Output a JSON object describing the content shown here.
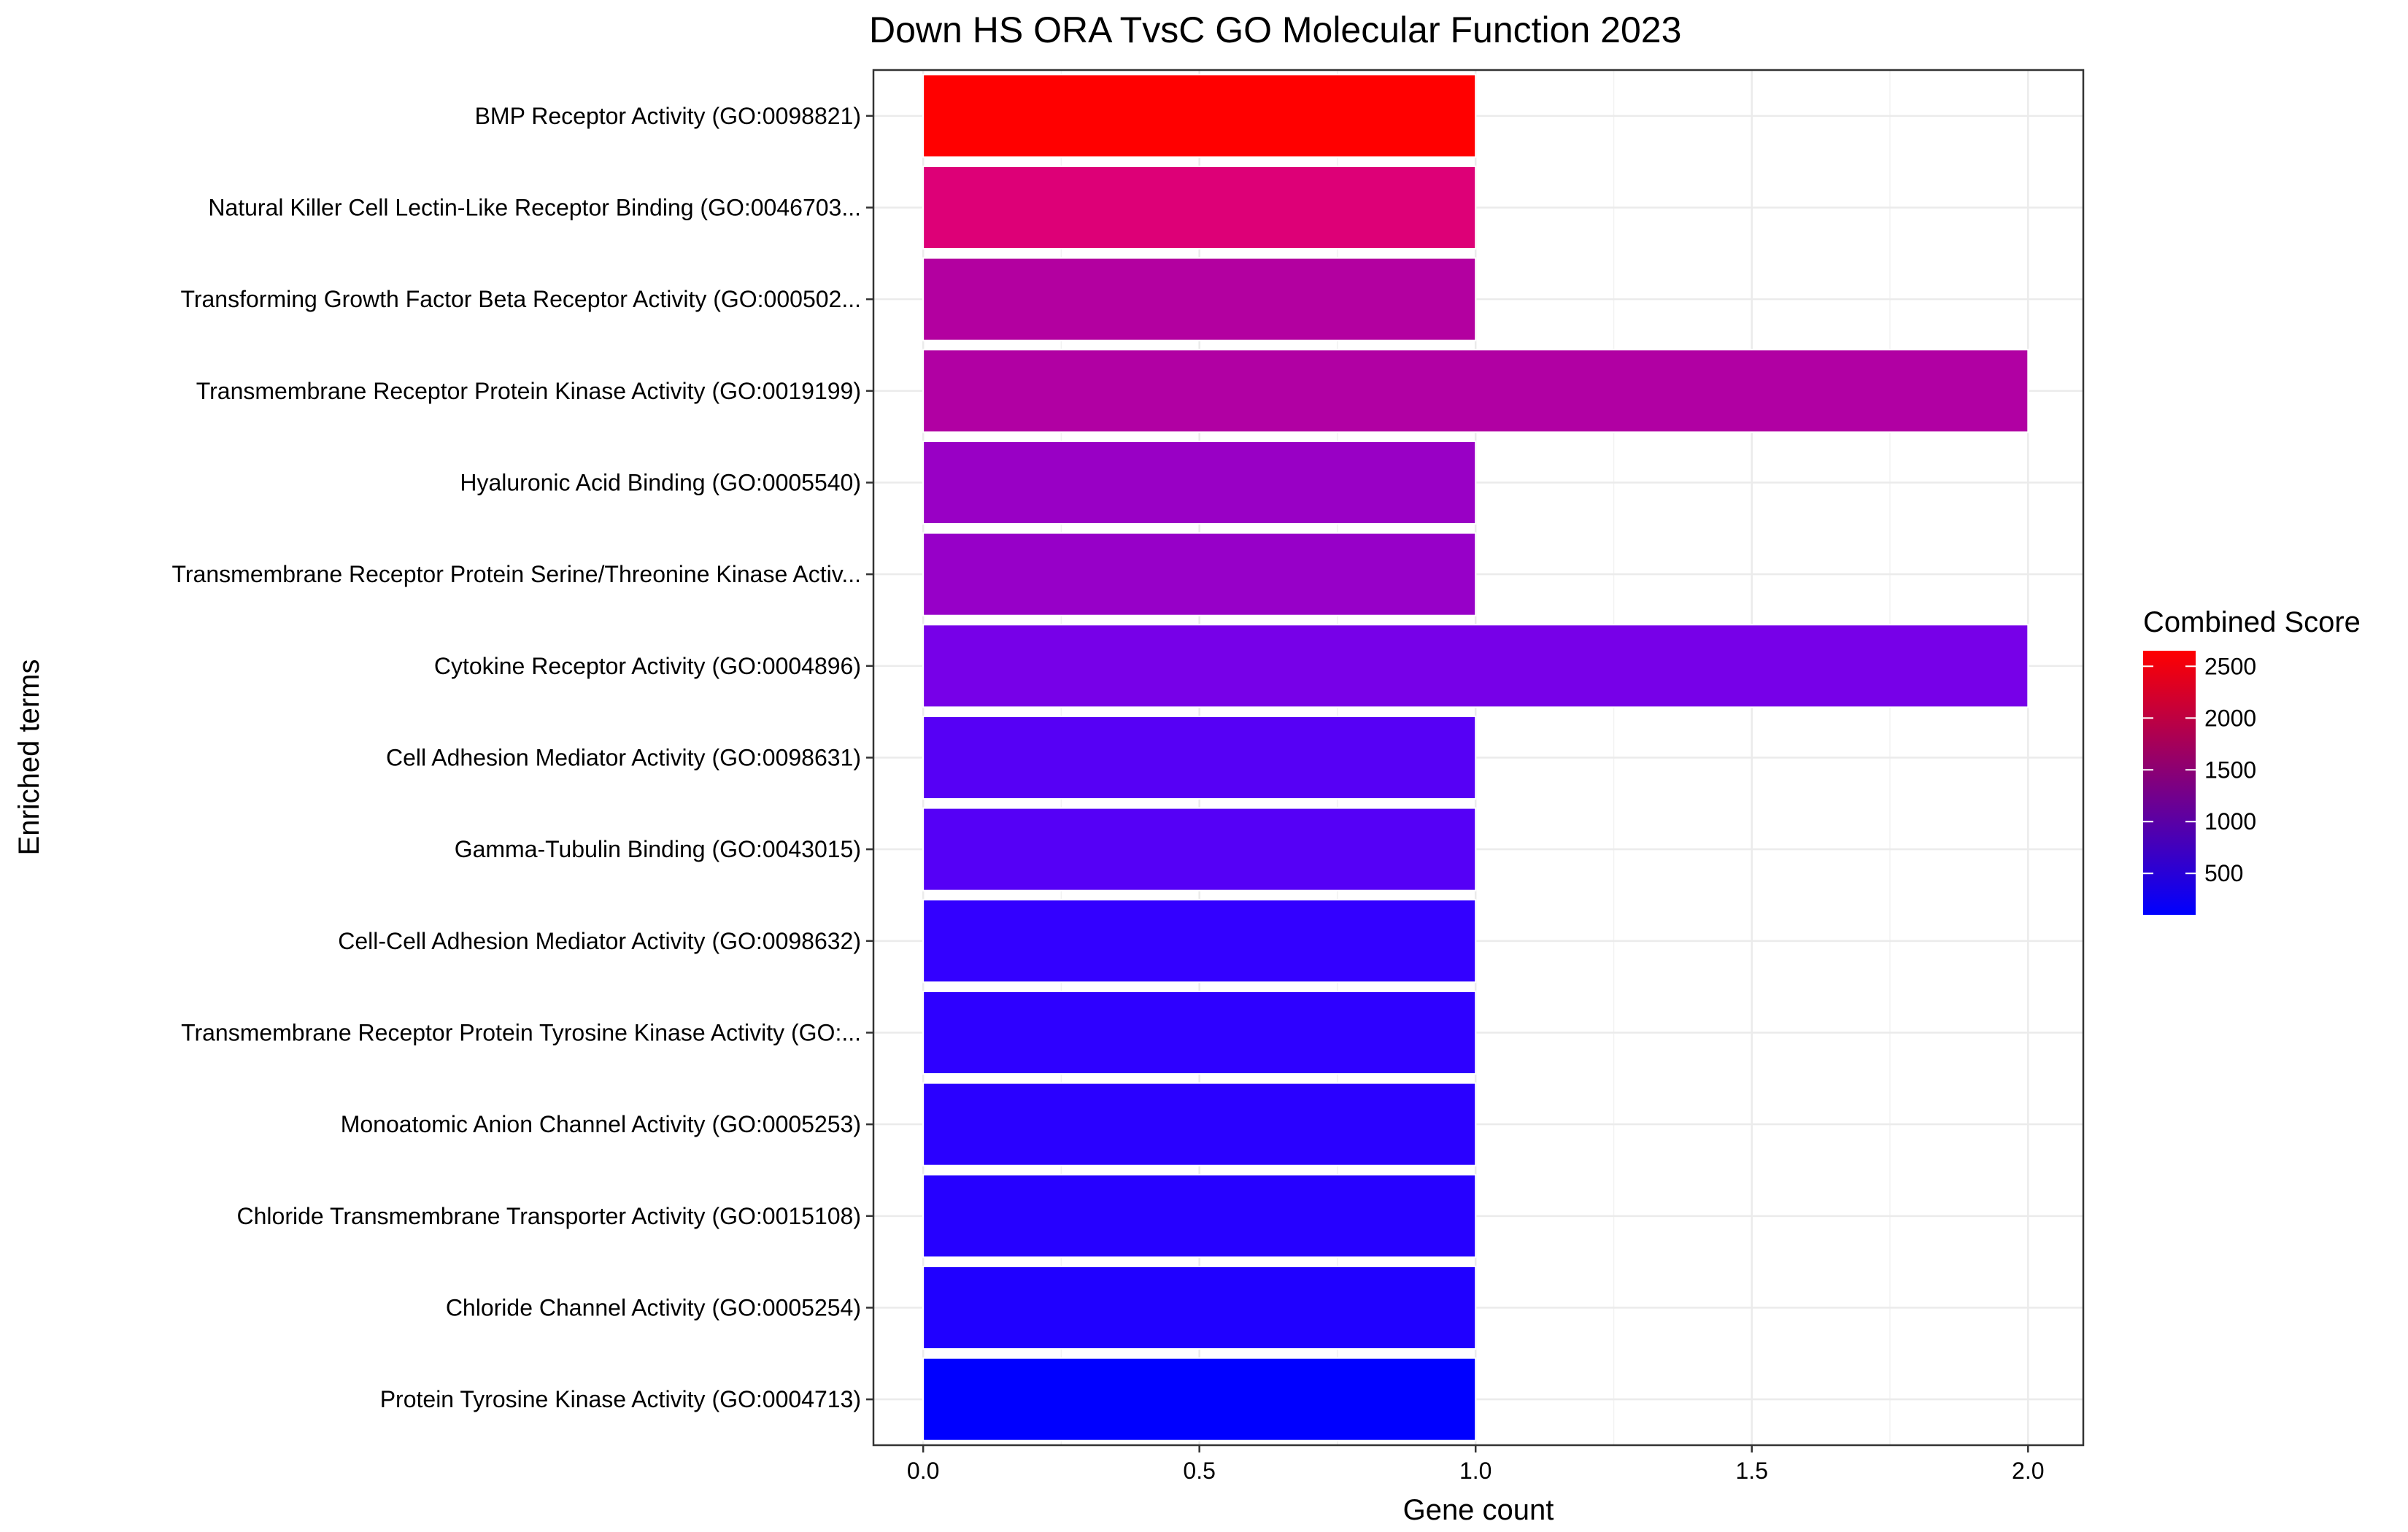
{
  "chart_data": {
    "type": "bar",
    "orientation": "horizontal",
    "title": "Down HS ORA TvsC GO Molecular Function 2023",
    "xlabel": "Gene count",
    "ylabel": "Enriched terms",
    "xlim": [
      -0.09,
      2.1
    ],
    "xticks": [
      "0.0",
      "0.5",
      "1.0",
      "1.5",
      "2.0"
    ],
    "grid": true,
    "legend": {
      "title": "Combined Score",
      "position": "right",
      "ticks": [
        "500",
        "1000",
        "1500",
        "2000",
        "2500"
      ],
      "range": [
        100,
        2650
      ],
      "low_color": "#0000ff",
      "high_color": "#ff0000"
    },
    "categories": [
      "BMP Receptor Activity (GO:0098821)",
      "Natural Killer Cell Lectin-Like Receptor Binding (GO:0046703...",
      "Transforming Growth Factor Beta Receptor Activity (GO:000502...",
      "Transmembrane Receptor Protein Kinase Activity (GO:0019199)",
      "Hyaluronic Acid Binding (GO:0005540)",
      "Transmembrane Receptor Protein Serine/Threonine Kinase Activ...",
      "Cytokine Receptor Activity (GO:0004896)",
      "Cell Adhesion Mediator Activity (GO:0098631)",
      "Gamma-Tubulin Binding (GO:0043015)",
      "Cell-Cell Adhesion Mediator Activity (GO:0098632)",
      "Transmembrane Receptor Protein Tyrosine Kinase Activity (GO:...",
      "Monoatomic Anion Channel Activity (GO:0005253)",
      "Chloride Transmembrane Transporter Activity (GO:0015108)",
      "Chloride Channel Activity (GO:0005254)",
      "Protein Tyrosine Kinase Activity (GO:0004713)"
    ],
    "values": [
      1,
      1,
      1,
      2,
      1,
      1,
      2,
      1,
      1,
      1,
      1,
      1,
      1,
      1,
      1
    ],
    "combined_score": [
      2650,
      1950,
      1500,
      1480,
      1200,
      1150,
      850,
      620,
      600,
      330,
      300,
      260,
      250,
      220,
      100
    ],
    "colors": [
      "#ff0000",
      "#dd0077",
      "#b300a0",
      "#b100a3",
      "#9900c5",
      "#9700c8",
      "#7700e8",
      "#5600f5",
      "#5500f6",
      "#3300ff",
      "#2e00ff",
      "#2a00ff",
      "#2600ff",
      "#2000ff",
      "#0000ff"
    ]
  }
}
